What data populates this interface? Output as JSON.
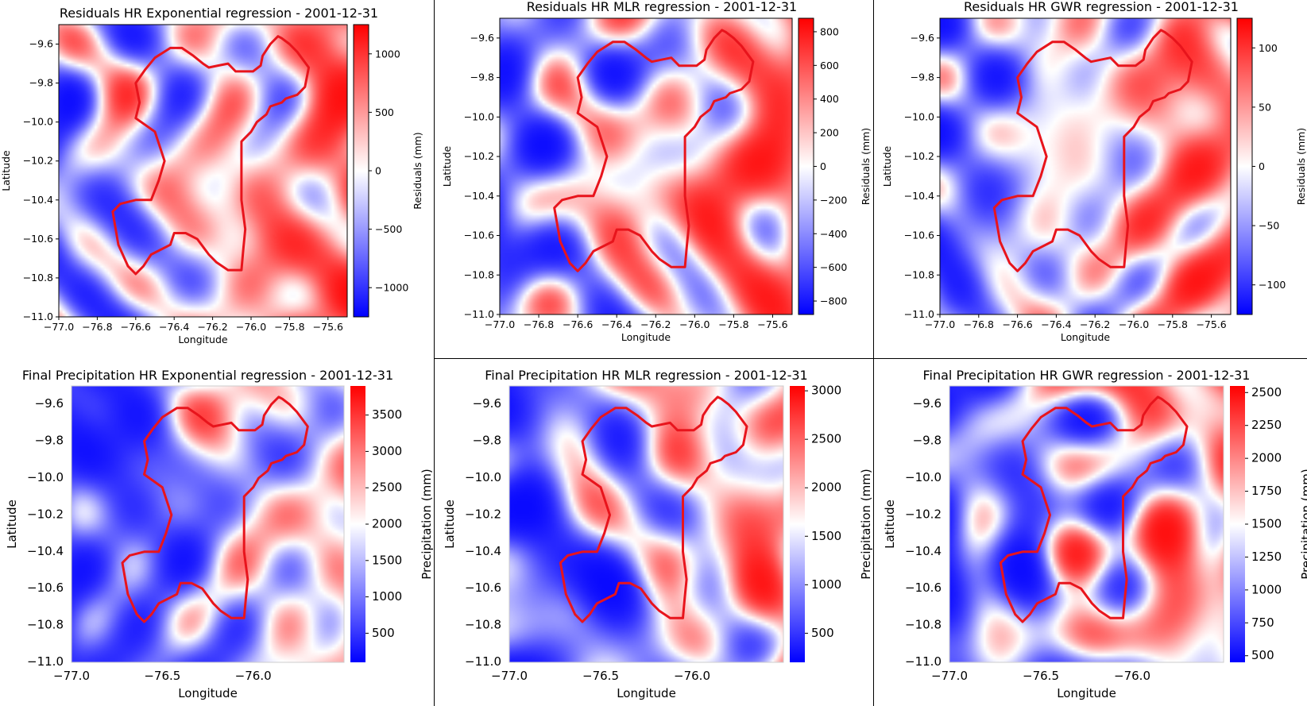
{
  "colors": {
    "negative": "#0000ff",
    "neutral": "#ffffff",
    "positive": "#ff0000",
    "outline": "#e8141c"
  },
  "chart_data": [
    {
      "type": "heatmap",
      "title": "Residuals HR Exponential regression - 2001-12-31",
      "xlabel": "Longitude",
      "ylabel": "Latitude",
      "xlim": [
        -77.0,
        -75.5
      ],
      "ylim": [
        -11.0,
        -9.5
      ],
      "xticks": [
        -77.0,
        -76.8,
        -76.6,
        -76.4,
        -76.2,
        -76.0,
        -75.8,
        -75.6
      ],
      "xtick_labels": [
        "−77.0",
        "−76.8",
        "−76.6",
        "−76.4",
        "−76.2",
        "−76.0",
        "−75.8",
        "−75.6"
      ],
      "yticks": [
        -9.6,
        -9.8,
        -10.0,
        -10.2,
        -10.4,
        -10.6,
        -10.8,
        -11.0
      ],
      "ytick_labels": [
        "−9.6",
        "−9.8",
        "−10.0",
        "−10.2",
        "−10.4",
        "−10.6",
        "−10.8",
        "−11.0"
      ],
      "colorbar": {
        "label": "Residuals (mm)",
        "colormap": "bwr",
        "range": [
          -1250,
          1250
        ],
        "ticks": [
          1000,
          500,
          0,
          -500,
          -1000
        ],
        "tick_labels": [
          "1000",
          "500",
          "0",
          "−500",
          "−1000"
        ]
      },
      "grid": false,
      "field_seed": 11,
      "field_bias": 0.08
    },
    {
      "type": "heatmap",
      "title": "Residuals HR MLR regression - 2001-12-31",
      "xlabel": "Longitude",
      "ylabel": "Latitude",
      "xlim": [
        -77.0,
        -75.5
      ],
      "ylim": [
        -11.0,
        -9.5
      ],
      "xticks": [
        -77.0,
        -76.8,
        -76.6,
        -76.4,
        -76.2,
        -76.0,
        -75.8,
        -75.6
      ],
      "xtick_labels": [
        "−77.0",
        "−76.8",
        "−76.6",
        "−76.4",
        "−76.2",
        "−76.0",
        "−75.8",
        "−75.6"
      ],
      "yticks": [
        -9.6,
        -9.8,
        -10.0,
        -10.2,
        -10.4,
        -10.6,
        -10.8,
        -11.0
      ],
      "ytick_labels": [
        "−9.6",
        "−9.8",
        "−10.0",
        "−10.2",
        "−10.4",
        "−10.6",
        "−10.8",
        "−11.0"
      ],
      "colorbar": {
        "label": "Residuals (mm)",
        "colormap": "bwr",
        "range": [
          -880,
          880
        ],
        "ticks": [
          800,
          600,
          400,
          200,
          0,
          -200,
          -400,
          -600,
          -800
        ],
        "tick_labels": [
          "800",
          "600",
          "400",
          "200",
          "0",
          "−200",
          "−400",
          "−600",
          "−800"
        ]
      },
      "grid": false,
      "field_seed": 23,
      "field_bias": 0.0
    },
    {
      "type": "heatmap",
      "title": "Residuals HR GWR regression - 2001-12-31",
      "xlabel": "Longitude",
      "ylabel": "Latitude",
      "xlim": [
        -77.0,
        -75.5
      ],
      "ylim": [
        -11.0,
        -9.5
      ],
      "xticks": [
        -77.0,
        -76.8,
        -76.6,
        -76.4,
        -76.2,
        -76.0,
        -75.8,
        -75.6
      ],
      "xtick_labels": [
        "−77.0",
        "−76.8",
        "−76.6",
        "−76.4",
        "−76.2",
        "−76.0",
        "−75.8",
        "−75.6"
      ],
      "yticks": [
        -9.6,
        -9.8,
        -10.0,
        -10.2,
        -10.4,
        -10.6,
        -10.8,
        -11.0
      ],
      "ytick_labels": [
        "−9.6",
        "−9.8",
        "−10.0",
        "−10.2",
        "−10.4",
        "−10.6",
        "−10.8",
        "−11.0"
      ],
      "colorbar": {
        "label": "Residuals (mm)",
        "colormap": "bwr",
        "range": [
          -125,
          125
        ],
        "ticks": [
          100,
          50,
          0,
          -50,
          -100
        ],
        "tick_labels": [
          "100",
          "50",
          "0",
          "−50",
          "−100"
        ]
      },
      "grid": false,
      "field_seed": 37,
      "field_bias": 0.0
    },
    {
      "type": "heatmap",
      "title": "Final Precipitation HR Exponential regression - 2001-12-31",
      "xlabel": "Longitude",
      "ylabel": "Latitude",
      "xlim": [
        -77.0,
        -75.5
      ],
      "ylim": [
        -11.0,
        -9.5
      ],
      "xticks": [
        -77.0,
        -76.5,
        -76.0
      ],
      "xtick_labels": [
        "−77.0",
        "−76.5",
        "−76.0"
      ],
      "yticks": [
        -9.6,
        -9.8,
        -10.0,
        -10.2,
        -10.4,
        -10.6,
        -10.8,
        -11.0
      ],
      "ytick_labels": [
        "−9.6",
        "−9.8",
        "−10.0",
        "−10.2",
        "−10.4",
        "−10.6",
        "−10.8",
        "−11.0"
      ],
      "colorbar": {
        "label": "Precipitation (mm)",
        "colormap": "bwr",
        "range": [
          100,
          3900
        ],
        "ticks": [
          3500,
          3000,
          2500,
          2000,
          1500,
          1000,
          500
        ],
        "tick_labels": [
          "3500",
          "3000",
          "2500",
          "2000",
          "1500",
          "1000",
          "500"
        ]
      },
      "grid": false,
      "field_seed": 53,
      "field_bias": -0.45
    },
    {
      "type": "heatmap",
      "title": "Final Precipitation HR MLR regression - 2001-12-31",
      "xlabel": "Longitude",
      "ylabel": "Latitude",
      "xlim": [
        -77.0,
        -75.5
      ],
      "ylim": [
        -11.0,
        -9.5
      ],
      "xticks": [
        -77.0,
        -76.5,
        -76.0
      ],
      "xtick_labels": [
        "−77.0",
        "−76.5",
        "−76.0"
      ],
      "yticks": [
        -9.6,
        -9.8,
        -10.0,
        -10.2,
        -10.4,
        -10.6,
        -10.8,
        -11.0
      ],
      "ytick_labels": [
        "−9.6",
        "−9.8",
        "−10.0",
        "−10.2",
        "−10.4",
        "−10.6",
        "−10.8",
        "−11.0"
      ],
      "colorbar": {
        "label": "Precipitation (mm)",
        "colormap": "bwr",
        "range": [
          200,
          3050
        ],
        "ticks": [
          3000,
          2500,
          2000,
          1500,
          1000,
          500
        ],
        "tick_labels": [
          "3000",
          "2500",
          "2000",
          "1500",
          "1000",
          "500"
        ]
      },
      "grid": false,
      "field_seed": 71,
      "field_bias": -0.3
    },
    {
      "type": "heatmap",
      "title": "Final Precipitation HR GWR regression - 2001-12-31",
      "xlabel": "Longitude",
      "ylabel": "Latitude",
      "xlim": [
        -77.0,
        -75.5
      ],
      "ylim": [
        -11.0,
        -9.5
      ],
      "xticks": [
        -77.0,
        -76.5,
        -76.0
      ],
      "xtick_labels": [
        "−77.0",
        "−76.5",
        "−76.0"
      ],
      "yticks": [
        -9.6,
        -9.8,
        -10.0,
        -10.2,
        -10.4,
        -10.6,
        -10.8,
        -11.0
      ],
      "ytick_labels": [
        "−9.6",
        "−9.8",
        "−10.0",
        "−10.2",
        "−10.4",
        "−10.6",
        "−10.8",
        "−11.0"
      ],
      "colorbar": {
        "label": "Precipitation (mm)",
        "colormap": "bwr",
        "range": [
          450,
          2550
        ],
        "ticks": [
          2500,
          2250,
          2000,
          1750,
          1500,
          1250,
          1000,
          750,
          500
        ],
        "tick_labels": [
          "2500",
          "2250",
          "2000",
          "1750",
          "1500",
          "1250",
          "1000",
          "750",
          "500"
        ]
      },
      "grid": false,
      "field_seed": 89,
      "field_bias": -0.2
    }
  ],
  "basin_outline": {
    "lon": [
      -76.72,
      -76.68,
      -76.6,
      -76.52,
      -76.48,
      -76.45,
      -76.5,
      -76.6,
      -76.58,
      -76.6,
      -76.55,
      -76.5,
      -76.42,
      -76.36,
      -76.3,
      -76.25,
      -76.22,
      -76.17,
      -76.12,
      -76.1,
      -76.08,
      -75.99,
      -75.95,
      -75.94,
      -75.9,
      -75.86,
      -75.84,
      -75.8,
      -75.76,
      -75.7,
      -75.72,
      -75.76,
      -75.82,
      -75.84,
      -75.9,
      -75.92,
      -75.97,
      -76.0,
      -76.05,
      -76.05,
      -76.05,
      -76.03,
      -76.04,
      -76.05,
      -76.12,
      -76.18,
      -76.22,
      -76.28,
      -76.34,
      -76.4,
      -76.42,
      -76.52,
      -76.56,
      -76.6,
      -76.64,
      -76.69,
      -76.72
    ],
    "lat": [
      -10.46,
      -10.42,
      -10.4,
      -10.4,
      -10.3,
      -10.2,
      -10.05,
      -9.98,
      -9.9,
      -9.8,
      -9.73,
      -9.67,
      -9.62,
      -9.62,
      -9.66,
      -9.7,
      -9.72,
      -9.71,
      -9.7,
      -9.72,
      -9.74,
      -9.74,
      -9.71,
      -9.66,
      -9.6,
      -9.56,
      -9.57,
      -9.6,
      -9.64,
      -9.72,
      -9.82,
      -9.86,
      -9.88,
      -9.9,
      -9.92,
      -9.96,
      -10.0,
      -10.05,
      -10.1,
      -10.25,
      -10.4,
      -10.55,
      -10.65,
      -10.76,
      -10.76,
      -10.72,
      -10.68,
      -10.6,
      -10.57,
      -10.57,
      -10.63,
      -10.68,
      -10.74,
      -10.78,
      -10.74,
      -10.63,
      -10.46
    ]
  }
}
